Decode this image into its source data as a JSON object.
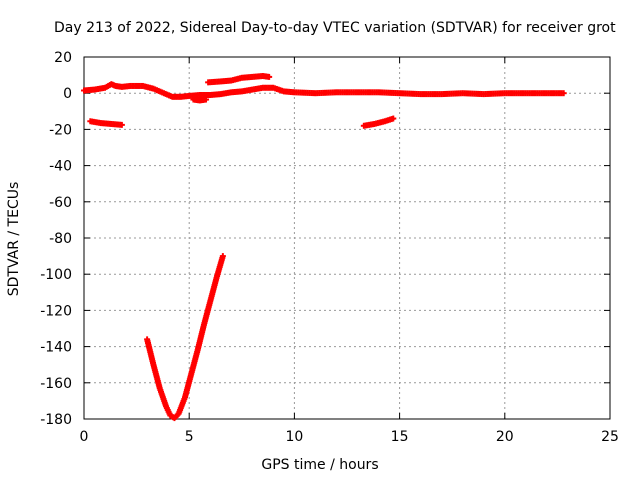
{
  "chart_data": {
    "type": "scatter",
    "title": "Day 213 of 2022, Sidereal Day-to-day VTEC variation (SDTVAR) for receiver grot",
    "xlabel": "GPS time / hours",
    "ylabel": "SDTVAR / TECUs",
    "xlim": [
      0,
      25
    ],
    "ylim": [
      -180,
      20
    ],
    "xticks": [
      0,
      5,
      10,
      15,
      20,
      25
    ],
    "yticks": [
      20,
      0,
      -20,
      -40,
      -60,
      -80,
      -100,
      -120,
      -140,
      -160,
      -180
    ],
    "grid": true,
    "marker_color": "#ff0000",
    "series": [
      {
        "values": [
          [
            0.0,
            1.5
          ],
          [
            0.5,
            2.0
          ],
          [
            1.0,
            3.0
          ],
          [
            1.3,
            5.0
          ],
          [
            1.5,
            4.0
          ],
          [
            1.8,
            3.5
          ],
          [
            2.2,
            4.0
          ],
          [
            2.8,
            4.0
          ],
          [
            3.3,
            2.5
          ],
          [
            3.8,
            0.0
          ],
          [
            4.2,
            -2.0
          ],
          [
            4.6,
            -2.0
          ],
          [
            5.0,
            -1.5
          ],
          [
            5.5,
            -1.0
          ],
          [
            6.0,
            -1.0
          ],
          [
            6.5,
            -0.5
          ],
          [
            7.0,
            0.5
          ],
          [
            7.5,
            1.0
          ],
          [
            8.0,
            2.0
          ],
          [
            8.5,
            3.0
          ],
          [
            9.0,
            3.0
          ],
          [
            9.5,
            1.0
          ],
          [
            10.0,
            0.5
          ],
          [
            11.0,
            0.0
          ],
          [
            12.0,
            0.5
          ],
          [
            13.0,
            0.5
          ],
          [
            14.0,
            0.5
          ],
          [
            15.0,
            0.0
          ],
          [
            16.0,
            -0.5
          ],
          [
            17.0,
            -0.5
          ],
          [
            18.0,
            0.0
          ],
          [
            19.0,
            -0.5
          ],
          [
            20.0,
            0.0
          ],
          [
            21.0,
            0.0
          ],
          [
            22.0,
            0.0
          ],
          [
            22.8,
            0.0
          ]
        ]
      },
      {
        "values": [
          [
            5.2,
            -3.5
          ],
          [
            5.5,
            -4.0
          ],
          [
            5.8,
            -3.5
          ]
        ]
      },
      {
        "values": [
          [
            5.9,
            6.0
          ],
          [
            6.5,
            6.5
          ],
          [
            7.0,
            7.0
          ],
          [
            7.5,
            8.5
          ],
          [
            8.0,
            9.0
          ],
          [
            8.5,
            9.5
          ],
          [
            8.8,
            9.0
          ]
        ]
      },
      {
        "values": [
          [
            0.3,
            -15.5
          ],
          [
            0.8,
            -16.5
          ],
          [
            1.3,
            -17.0
          ],
          [
            1.8,
            -17.5
          ]
        ]
      },
      {
        "values": [
          [
            13.3,
            -18.0
          ],
          [
            13.8,
            -17.0
          ],
          [
            14.3,
            -15.5
          ],
          [
            14.7,
            -14.0
          ]
        ]
      },
      {
        "values": [
          [
            3.0,
            -136
          ],
          [
            3.3,
            -150
          ],
          [
            3.6,
            -163
          ],
          [
            3.9,
            -173
          ],
          [
            4.1,
            -178
          ],
          [
            4.3,
            -179.5
          ],
          [
            4.5,
            -177
          ],
          [
            4.8,
            -168
          ],
          [
            5.1,
            -155
          ],
          [
            5.4,
            -142
          ],
          [
            5.7,
            -128
          ],
          [
            6.0,
            -115
          ],
          [
            6.3,
            -102
          ],
          [
            6.6,
            -90
          ]
        ]
      }
    ]
  }
}
